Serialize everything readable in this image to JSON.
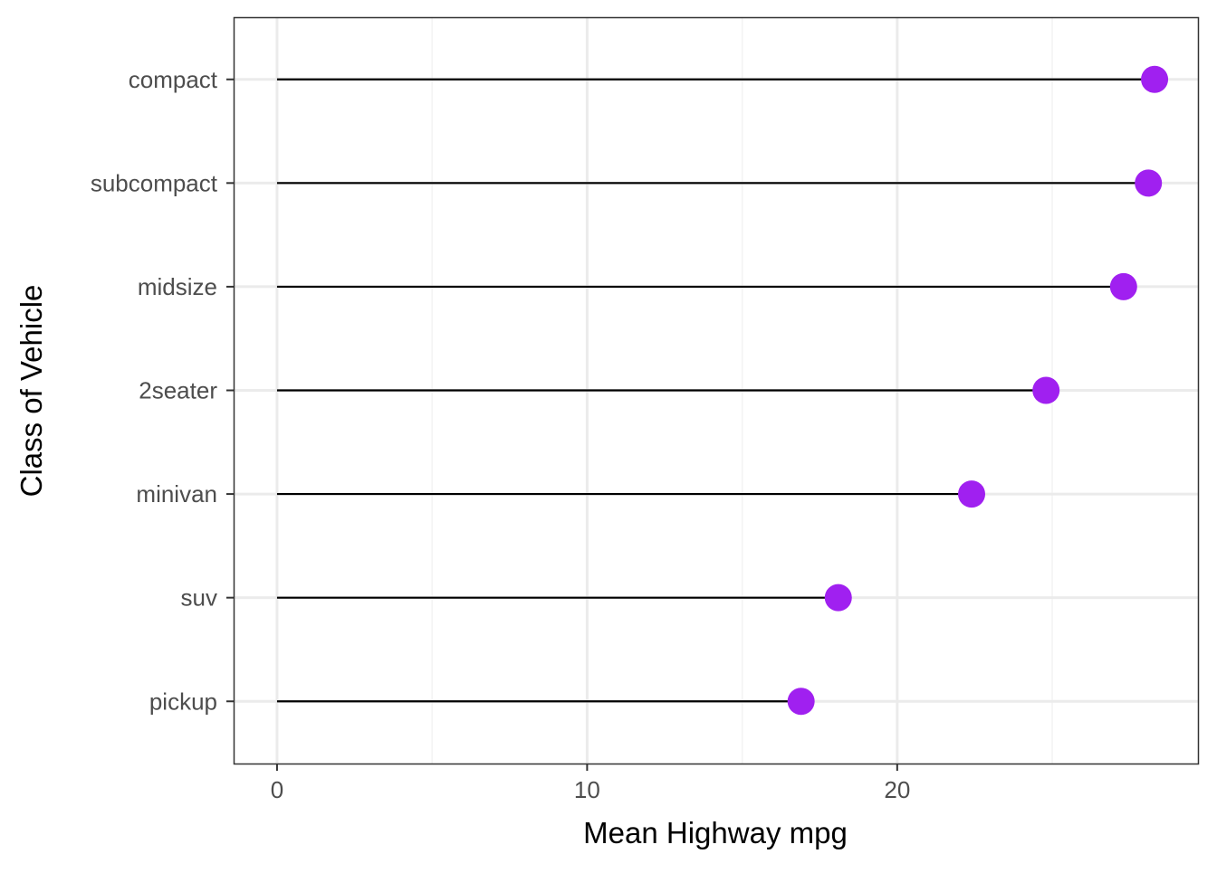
{
  "chart_data": {
    "type": "lollipop",
    "orientation": "horizontal",
    "categories": [
      "compact",
      "subcompact",
      "midsize",
      "2seater",
      "minivan",
      "suv",
      "pickup"
    ],
    "values": [
      28.3,
      28.1,
      27.3,
      24.8,
      22.4,
      18.1,
      16.9
    ],
    "baseline": 0,
    "xlabel": "Mean Highway mpg",
    "ylabel": "Class of Vehicle",
    "xlim": [
      -1.4,
      29.7
    ],
    "xticks": [
      0,
      10,
      20
    ],
    "xtick_labels": [
      "0",
      "10",
      "20"
    ],
    "grid": true,
    "theme": "bw",
    "colors": {
      "point": "#A020F0",
      "stem": "#000000",
      "grid_major": "#EBEBEB",
      "grid_minor": "#F3F3F3",
      "panel_border": "#333333",
      "tick_text": "#4D4D4D"
    }
  }
}
